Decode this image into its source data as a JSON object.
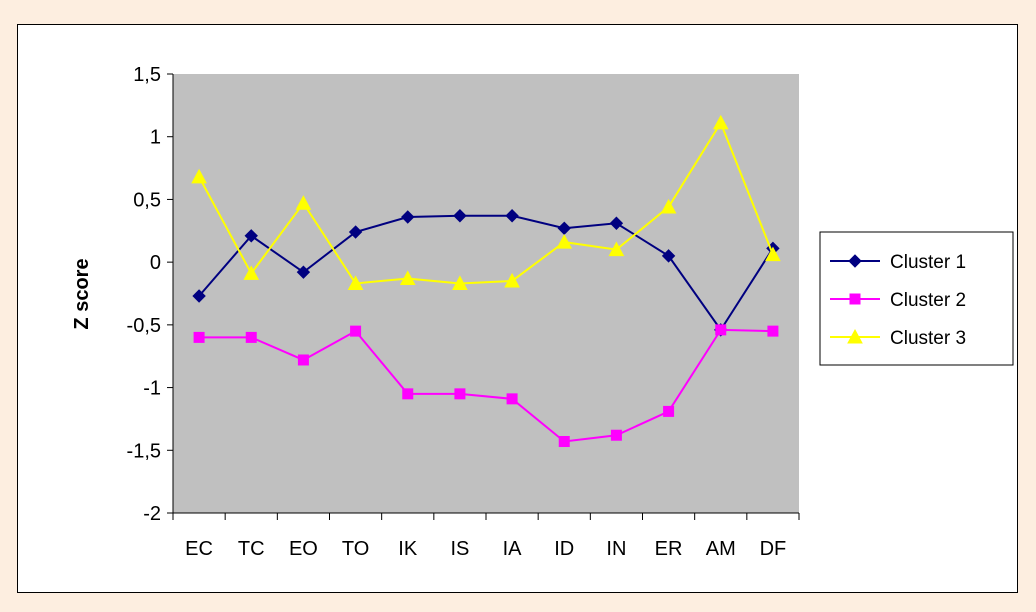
{
  "chart_data": {
    "type": "line",
    "title": "",
    "xlabel": "",
    "ylabel": "Z score",
    "categories": [
      "EC",
      "TC",
      "EO",
      "TO",
      "IK",
      "IS",
      "IA",
      "ID",
      "IN",
      "ER",
      "AM",
      "DF"
    ],
    "ylim": [
      -2,
      1.5
    ],
    "yticks": [
      1.5,
      1,
      0.5,
      0,
      -0.5,
      -1,
      -1.5,
      -2
    ],
    "ytick_labels": [
      "1,5",
      "1",
      "0,5",
      "0",
      "-0,5",
      "-1",
      "-1,5",
      "-2"
    ],
    "plot_background": "#c0c0c0",
    "grid": false,
    "legend_position": "right",
    "series": [
      {
        "name": "Cluster 1",
        "color": "#000080",
        "marker": "diamond",
        "values": [
          -0.27,
          0.21,
          -0.08,
          0.24,
          0.36,
          0.37,
          0.37,
          0.27,
          0.31,
          0.05,
          -0.54,
          0.11
        ]
      },
      {
        "name": "Cluster 2",
        "color": "#ff00ff",
        "marker": "square",
        "values": [
          -0.6,
          -0.6,
          -0.78,
          -0.55,
          -1.05,
          -1.05,
          -1.09,
          -1.43,
          -1.38,
          -1.19,
          -0.54,
          -0.55
        ]
      },
      {
        "name": "Cluster 3",
        "color": "#ffff00",
        "marker": "triangle",
        "values": [
          0.68,
          -0.09,
          0.47,
          -0.17,
          -0.13,
          -0.17,
          -0.15,
          0.16,
          0.1,
          0.44,
          1.11,
          0.06
        ]
      }
    ]
  }
}
